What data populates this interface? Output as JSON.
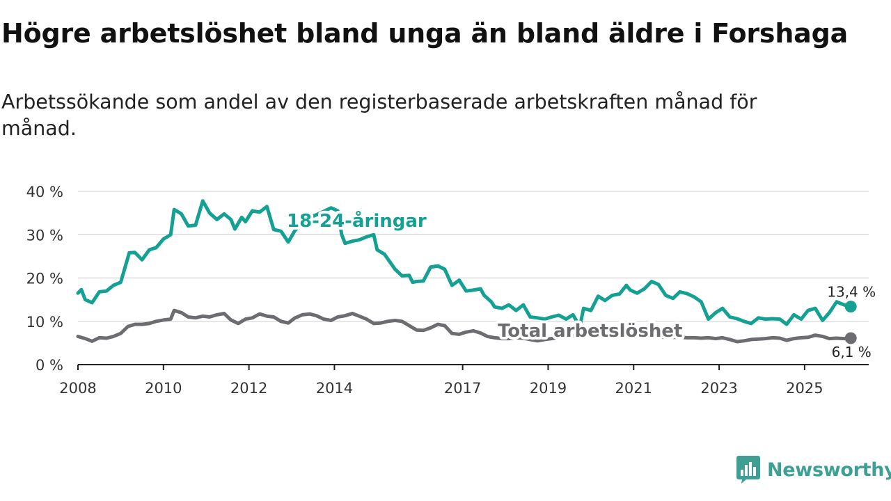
{
  "title": "Högre arbetslöshet bland unga än bland äldre i Forshaga",
  "subtitle": "Arbetssökande som andel av den registerbaserade arbetskraften månad för månad.",
  "brand": {
    "name": "Newsworthy",
    "color": "#3e9f95"
  },
  "chart_data": {
    "type": "line",
    "ylim": [
      0,
      40
    ],
    "xlim": [
      2008,
      2026.5
    ],
    "y_ticks": [
      0,
      10,
      20,
      30,
      40
    ],
    "y_tick_labels": [
      "0 %",
      "10 %",
      "20 %",
      "30 %",
      "40 %"
    ],
    "x_ticks": [
      2008,
      2010,
      2012,
      2014,
      2017,
      2019,
      2021,
      2023,
      2025
    ],
    "x_tick_labels": [
      "2008",
      "2010",
      "2012",
      "2014",
      "2017",
      "2019",
      "2021",
      "2023",
      "2025"
    ],
    "grid": true,
    "series": [
      {
        "name": "18-24-åringar",
        "label": "18-24-åringar",
        "color": "#14a193",
        "end_label": "13,4 %",
        "points": [
          [
            2008.0,
            16.5
          ],
          [
            2008.08,
            17.3
          ],
          [
            2008.17,
            15.0
          ],
          [
            2008.33,
            14.3
          ],
          [
            2008.5,
            16.8
          ],
          [
            2008.67,
            17.0
          ],
          [
            2008.83,
            18.3
          ],
          [
            2009.0,
            19.0
          ],
          [
            2009.2,
            25.8
          ],
          [
            2009.33,
            25.9
          ],
          [
            2009.5,
            24.2
          ],
          [
            2009.67,
            26.5
          ],
          [
            2009.83,
            27.0
          ],
          [
            2010.0,
            29.0
          ],
          [
            2010.17,
            30.0
          ],
          [
            2010.25,
            35.8
          ],
          [
            2010.42,
            34.8
          ],
          [
            2010.58,
            32.0
          ],
          [
            2010.75,
            32.2
          ],
          [
            2010.92,
            37.8
          ],
          [
            2011.08,
            35.0
          ],
          [
            2011.25,
            33.5
          ],
          [
            2011.42,
            34.8
          ],
          [
            2011.58,
            33.5
          ],
          [
            2011.67,
            31.3
          ],
          [
            2011.83,
            34.0
          ],
          [
            2011.92,
            33.0
          ],
          [
            2012.08,
            35.5
          ],
          [
            2012.25,
            35.2
          ],
          [
            2012.42,
            36.5
          ],
          [
            2012.58,
            31.2
          ],
          [
            2012.75,
            30.8
          ],
          [
            2012.92,
            28.3
          ],
          [
            2013.08,
            31.0
          ],
          [
            2013.33,
            33.5
          ],
          [
            2013.67,
            35.0
          ],
          [
            2013.92,
            36.2
          ],
          [
            2014.08,
            35.5
          ],
          [
            2014.17,
            30.0
          ],
          [
            2014.25,
            28.0
          ],
          [
            2014.42,
            28.5
          ],
          [
            2014.58,
            28.8
          ],
          [
            2014.75,
            29.5
          ],
          [
            2014.92,
            30.0
          ],
          [
            2015.0,
            26.5
          ],
          [
            2015.17,
            25.5
          ],
          [
            2015.42,
            22.0
          ],
          [
            2015.58,
            20.5
          ],
          [
            2015.75,
            20.6
          ],
          [
            2015.83,
            19.0
          ],
          [
            2015.92,
            19.2
          ],
          [
            2016.08,
            19.3
          ],
          [
            2016.25,
            22.5
          ],
          [
            2016.42,
            22.8
          ],
          [
            2016.58,
            22.0
          ],
          [
            2016.75,
            18.3
          ],
          [
            2016.92,
            19.5
          ],
          [
            2017.08,
            17.0
          ],
          [
            2017.25,
            17.2
          ],
          [
            2017.42,
            17.5
          ],
          [
            2017.5,
            16.0
          ],
          [
            2017.67,
            14.5
          ],
          [
            2017.75,
            13.3
          ],
          [
            2017.92,
            13.0
          ],
          [
            2018.08,
            13.8
          ],
          [
            2018.25,
            12.5
          ],
          [
            2018.42,
            13.8
          ],
          [
            2018.58,
            11.0
          ],
          [
            2018.75,
            10.8
          ],
          [
            2018.92,
            10.5
          ],
          [
            2019.08,
            11.0
          ],
          [
            2019.25,
            11.4
          ],
          [
            2019.42,
            10.5
          ],
          [
            2019.58,
            11.5
          ],
          [
            2019.67,
            10.0
          ],
          [
            2019.75,
            9.2
          ],
          [
            2019.83,
            13.0
          ],
          [
            2020.0,
            12.5
          ],
          [
            2020.17,
            15.8
          ],
          [
            2020.33,
            14.8
          ],
          [
            2020.5,
            16.0
          ],
          [
            2020.67,
            16.3
          ],
          [
            2020.83,
            18.3
          ],
          [
            2020.92,
            17.2
          ],
          [
            2021.08,
            16.5
          ],
          [
            2021.25,
            17.5
          ],
          [
            2021.42,
            19.2
          ],
          [
            2021.58,
            18.5
          ],
          [
            2021.75,
            16.0
          ],
          [
            2021.92,
            15.3
          ],
          [
            2022.08,
            16.8
          ],
          [
            2022.25,
            16.4
          ],
          [
            2022.42,
            15.6
          ],
          [
            2022.58,
            14.5
          ],
          [
            2022.75,
            10.5
          ],
          [
            2022.92,
            12.0
          ],
          [
            2023.08,
            13.0
          ],
          [
            2023.25,
            11.0
          ],
          [
            2023.42,
            10.6
          ],
          [
            2023.58,
            10.0
          ],
          [
            2023.75,
            9.5
          ],
          [
            2023.92,
            10.8
          ],
          [
            2024.08,
            10.5
          ],
          [
            2024.25,
            10.6
          ],
          [
            2024.42,
            10.5
          ],
          [
            2024.58,
            9.3
          ],
          [
            2024.75,
            11.5
          ],
          [
            2024.92,
            10.5
          ],
          [
            2025.08,
            12.5
          ],
          [
            2025.25,
            13.0
          ],
          [
            2025.42,
            10.2
          ],
          [
            2025.58,
            12.0
          ],
          [
            2025.75,
            14.5
          ],
          [
            2025.92,
            13.8
          ],
          [
            2026.08,
            13.4
          ]
        ]
      },
      {
        "name": "Total arbetslöshet",
        "label": "Total arbetslöshet",
        "color": "#6d6c70",
        "end_label": "6,1 %",
        "points": [
          [
            2008.0,
            6.5
          ],
          [
            2008.17,
            6.0
          ],
          [
            2008.33,
            5.4
          ],
          [
            2008.5,
            6.2
          ],
          [
            2008.67,
            6.1
          ],
          [
            2008.83,
            6.5
          ],
          [
            2009.0,
            7.2
          ],
          [
            2009.17,
            8.8
          ],
          [
            2009.33,
            9.3
          ],
          [
            2009.5,
            9.3
          ],
          [
            2009.67,
            9.5
          ],
          [
            2009.83,
            10.0
          ],
          [
            2010.0,
            10.3
          ],
          [
            2010.17,
            10.5
          ],
          [
            2010.25,
            12.5
          ],
          [
            2010.42,
            12.0
          ],
          [
            2010.58,
            11.0
          ],
          [
            2010.75,
            10.8
          ],
          [
            2010.92,
            11.2
          ],
          [
            2011.08,
            11.0
          ],
          [
            2011.25,
            11.5
          ],
          [
            2011.42,
            11.8
          ],
          [
            2011.58,
            10.3
          ],
          [
            2011.75,
            9.5
          ],
          [
            2011.92,
            10.5
          ],
          [
            2012.08,
            10.8
          ],
          [
            2012.25,
            11.7
          ],
          [
            2012.42,
            11.2
          ],
          [
            2012.58,
            11.0
          ],
          [
            2012.75,
            10.0
          ],
          [
            2012.92,
            9.6
          ],
          [
            2013.08,
            10.8
          ],
          [
            2013.25,
            11.5
          ],
          [
            2013.42,
            11.7
          ],
          [
            2013.58,
            11.3
          ],
          [
            2013.75,
            10.5
          ],
          [
            2013.92,
            10.2
          ],
          [
            2014.08,
            11.0
          ],
          [
            2014.25,
            11.3
          ],
          [
            2014.42,
            11.8
          ],
          [
            2014.58,
            11.2
          ],
          [
            2014.75,
            10.5
          ],
          [
            2014.92,
            9.5
          ],
          [
            2015.08,
            9.6
          ],
          [
            2015.25,
            10.0
          ],
          [
            2015.42,
            10.2
          ],
          [
            2015.58,
            10.0
          ],
          [
            2015.75,
            9.0
          ],
          [
            2015.92,
            8.0
          ],
          [
            2016.08,
            7.9
          ],
          [
            2016.25,
            8.5
          ],
          [
            2016.42,
            9.3
          ],
          [
            2016.58,
            9.0
          ],
          [
            2016.75,
            7.2
          ],
          [
            2016.92,
            7.0
          ],
          [
            2017.08,
            7.5
          ],
          [
            2017.25,
            7.8
          ],
          [
            2017.42,
            7.3
          ],
          [
            2017.58,
            6.5
          ],
          [
            2017.75,
            6.2
          ],
          [
            2017.92,
            6.0
          ],
          [
            2018.08,
            6.0
          ],
          [
            2018.25,
            6.2
          ],
          [
            2018.42,
            6.1
          ],
          [
            2018.58,
            5.8
          ],
          [
            2018.75,
            5.5
          ],
          [
            2018.92,
            5.8
          ],
          [
            2019.08,
            6.0
          ],
          [
            2019.25,
            6.3
          ],
          [
            2019.42,
            6.5
          ],
          [
            2019.58,
            6.7
          ],
          [
            2019.75,
            6.8
          ],
          [
            2019.92,
            7.0
          ],
          [
            2020.08,
            7.2
          ],
          [
            2020.25,
            7.3
          ],
          [
            2020.42,
            7.2
          ],
          [
            2020.58,
            7.0
          ],
          [
            2020.75,
            6.8
          ],
          [
            2020.92,
            6.6
          ],
          [
            2021.08,
            6.5
          ],
          [
            2021.25,
            6.5
          ],
          [
            2021.42,
            6.4
          ],
          [
            2021.58,
            6.4
          ],
          [
            2021.75,
            6.3
          ],
          [
            2021.92,
            6.3
          ],
          [
            2022.08,
            6.3
          ],
          [
            2022.25,
            6.2
          ],
          [
            2022.42,
            6.2
          ],
          [
            2022.58,
            6.1
          ],
          [
            2022.75,
            6.2
          ],
          [
            2022.92,
            6.0
          ],
          [
            2023.08,
            6.2
          ],
          [
            2023.25,
            5.8
          ],
          [
            2023.42,
            5.3
          ],
          [
            2023.58,
            5.5
          ],
          [
            2023.75,
            5.8
          ],
          [
            2023.92,
            5.9
          ],
          [
            2024.08,
            6.0
          ],
          [
            2024.25,
            6.2
          ],
          [
            2024.42,
            6.1
          ],
          [
            2024.58,
            5.6
          ],
          [
            2024.75,
            6.0
          ],
          [
            2024.92,
            6.2
          ],
          [
            2025.08,
            6.3
          ],
          [
            2025.25,
            6.8
          ],
          [
            2025.42,
            6.5
          ],
          [
            2025.58,
            6.0
          ],
          [
            2025.75,
            6.1
          ],
          [
            2025.92,
            6.0
          ],
          [
            2026.08,
            6.1
          ]
        ]
      }
    ]
  }
}
